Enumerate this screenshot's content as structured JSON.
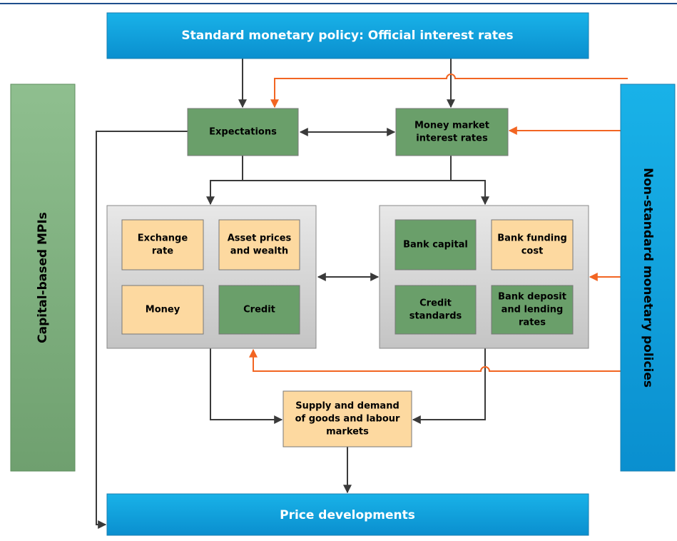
{
  "header": {
    "title": "Standard monetary policy: Official interest rates"
  },
  "sides": {
    "left": "Capital-based MPIs",
    "right": "Non-standard monetary policies"
  },
  "nodes": [
    {
      "lines": [
        "Expectations"
      ]
    },
    {
      "lines": [
        "Money market",
        "interest rates"
      ]
    },
    {
      "lines": [
        "Exchange",
        "rate"
      ]
    },
    {
      "lines": [
        "Asset prices",
        "and wealth"
      ]
    },
    {
      "lines": [
        "Money"
      ]
    },
    {
      "lines": [
        "Credit"
      ]
    },
    {
      "lines": [
        "Bank capital"
      ]
    },
    {
      "lines": [
        "Bank funding",
        "cost"
      ]
    },
    {
      "lines": [
        "Credit",
        "standards"
      ]
    },
    {
      "lines": [
        "Bank deposit",
        "and lending",
        "rates"
      ]
    },
    {
      "lines": [
        "Supply and demand",
        "of goods and labour",
        "markets"
      ]
    }
  ],
  "footer": {
    "title": "Price developments"
  }
}
